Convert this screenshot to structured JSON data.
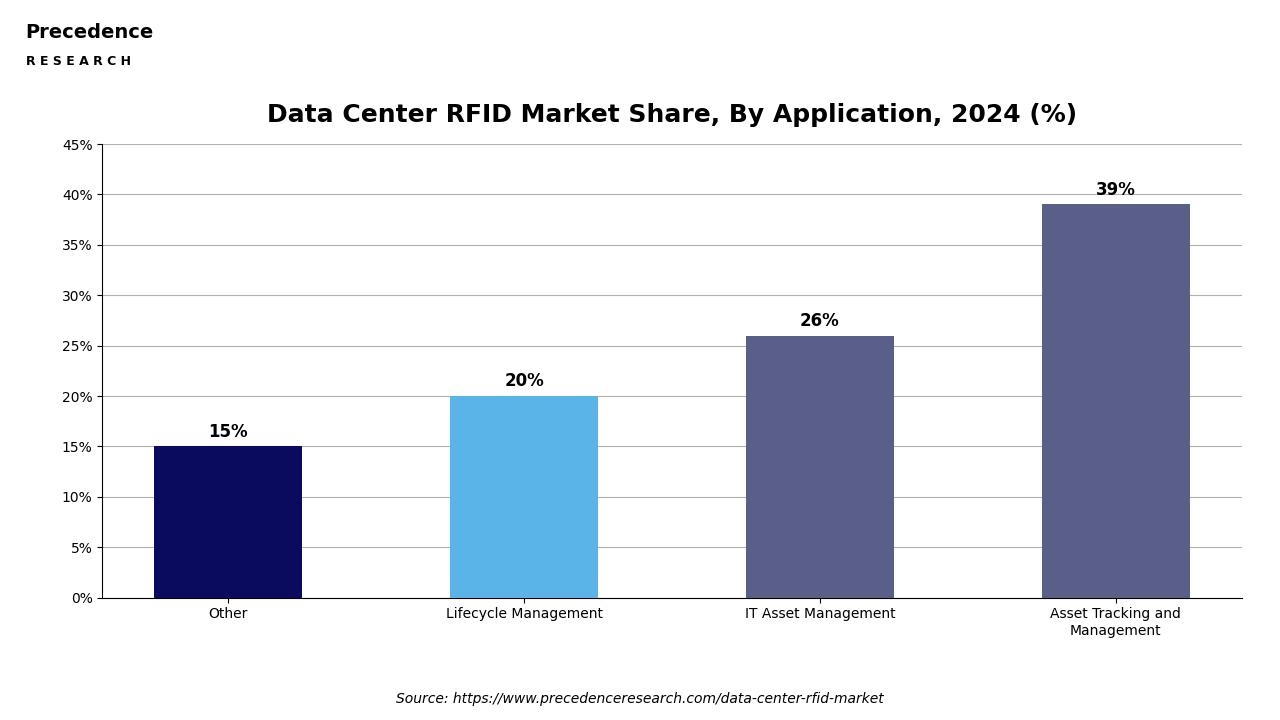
{
  "chart_data": {
    "type": "bar",
    "title": "Data Center RFID Market Share, By Application, 2024 (%)",
    "categories": [
      "Other",
      "Lifecycle Management",
      "IT Asset Management",
      "Asset Tracking and\nManagement"
    ],
    "values": [
      15,
      20,
      26,
      39
    ],
    "value_labels": [
      "15%",
      "20%",
      "26%",
      "39%"
    ],
    "data_labels": true,
    "colors": [
      "#0a0a5e",
      "#5ab4e8",
      "#5a5f8a",
      "#5a5f8a"
    ],
    "ylim": [
      0,
      45
    ],
    "yticks": [
      {
        "value": 0,
        "label": "0%"
      },
      {
        "value": 5,
        "label": "5%"
      },
      {
        "value": 10,
        "label": "10%"
      },
      {
        "value": 15,
        "label": "15%"
      },
      {
        "value": 20,
        "label": "20%"
      },
      {
        "value": 25,
        "label": "25%"
      },
      {
        "value": 30,
        "label": "30%"
      },
      {
        "value": 35,
        "label": "35%"
      },
      {
        "value": 40,
        "label": "40%"
      },
      {
        "value": 45,
        "label": "45%"
      }
    ],
    "grid": true,
    "annotations": [
      "Precedence",
      "R E S E A R C H",
      "Source: https://www.precedenceresearch.com/data-center-rfid-market"
    ]
  }
}
